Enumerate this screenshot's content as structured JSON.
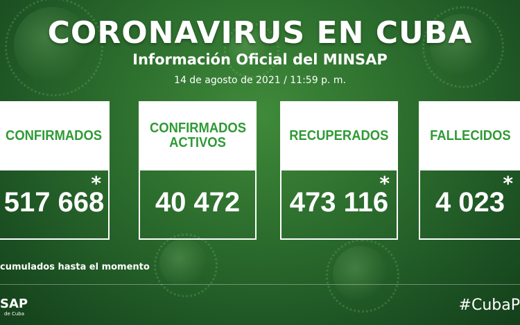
{
  "header": {
    "title": "CORONAVIRUS EN CUBA",
    "subtitle": "Información Oficial del MINSAP",
    "date": "14 de agosto de 2021 / 11:59 p. m."
  },
  "cards": [
    {
      "label": "CONFIRMADOS",
      "value": "517 668",
      "asterisk": "*"
    },
    {
      "label": "CONFIRMADOS ACTIVOS",
      "value": "40 472",
      "asterisk": ""
    },
    {
      "label": "RECUPERADOS",
      "value": "473 116",
      "asterisk": "*"
    },
    {
      "label": "FALLECIDOS",
      "value": "4 023",
      "asterisk": "*"
    }
  ],
  "footnote": "cumulados hasta el momento",
  "footer": {
    "logo": "SAP",
    "logo_sub": "de Cuba",
    "hashtag": "#CubaP"
  },
  "colors": {
    "label_green": "#2f9a35",
    "background_green": "#2a6a2c"
  }
}
